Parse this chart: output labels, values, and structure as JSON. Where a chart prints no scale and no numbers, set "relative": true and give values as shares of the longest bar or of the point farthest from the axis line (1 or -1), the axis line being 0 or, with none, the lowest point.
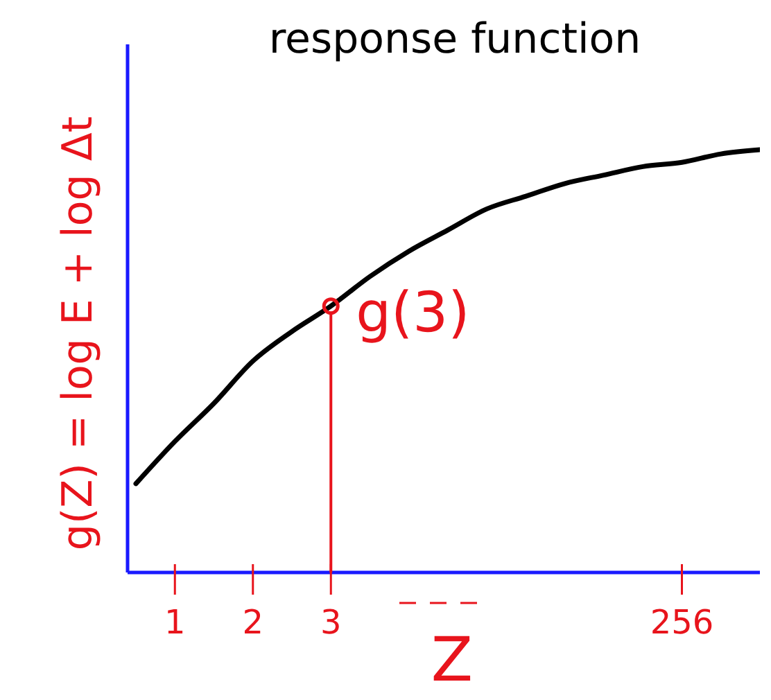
{
  "chart_data": {
    "type": "line",
    "title": "response function",
    "xlabel": "Z",
    "ylabel": "g(Z) = log E + log Δt",
    "relative": true,
    "categories": [
      null,
      "1",
      null,
      "2",
      null,
      "3",
      null,
      null,
      null,
      null,
      null,
      null,
      null,
      null,
      "256",
      null,
      null
    ],
    "series": [
      {
        "color": "#000000",
        "values": [
          0.21,
          0.31,
          0.4,
          0.5,
          0.57,
          0.63,
          0.7,
          0.76,
          0.81,
          0.86,
          0.89,
          0.92,
          0.94,
          0.96,
          0.97,
          0.99,
          1.0
        ]
      }
    ],
    "annotations": [
      {
        "text": "g(3)",
        "x": "3",
        "y": 0.63
      }
    ],
    "marker": "none",
    "grid": false
  }
}
